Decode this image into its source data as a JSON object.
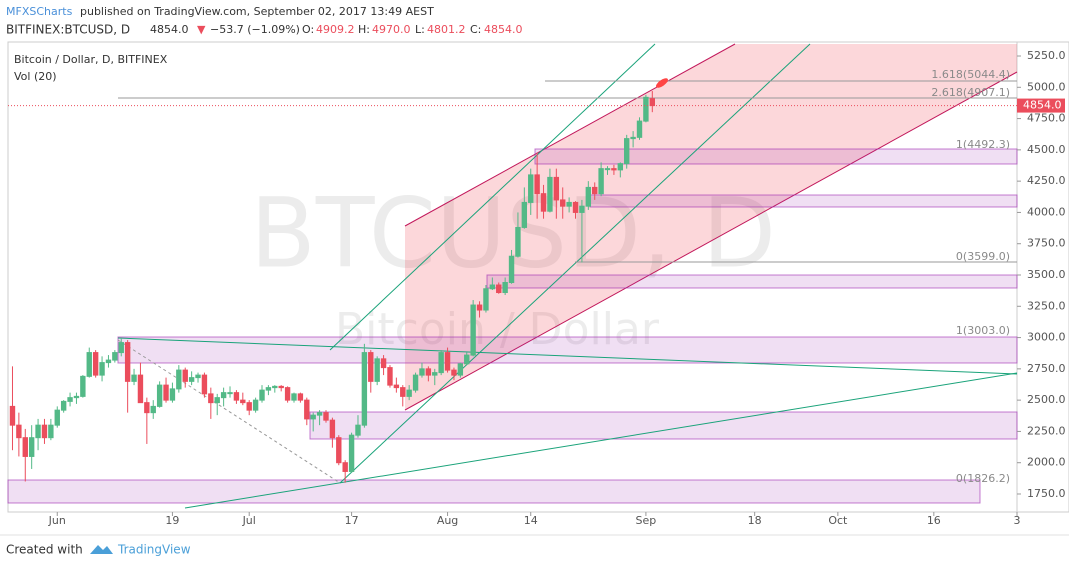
{
  "header": {
    "author": "MFXSCharts",
    "published": "published on TradingView.com, September 02, 2017 13:49 AEST",
    "symbol": "BITFINEX:BTCUSD, D",
    "last": "4854.0",
    "arrow": "▼",
    "change": "−53.7 (−1.09%)",
    "o_label": "O:",
    "o": "4909.2",
    "h_label": "H:",
    "h": "4970.0",
    "l_label": "L:",
    "l": "4801.2",
    "c_label": "C:",
    "c": "4854.0"
  },
  "chart_data": {
    "type": "candlestick",
    "title": "Bitcoin / Dollar, D, BITFINEX",
    "indicator": "Vol (20)",
    "watermark": "BTCUSD, D",
    "watermark_sub": "Bitcoin / Dollar",
    "up_color": "#53b987",
    "down_color": "#eb4d5c",
    "x": [
      -7,
      -6,
      -5,
      -4,
      -3,
      -2,
      -1,
      0,
      1,
      2,
      3,
      4,
      5,
      6,
      7,
      8,
      9,
      10,
      11,
      12,
      13,
      14,
      15,
      16,
      17,
      18,
      19,
      20,
      21,
      22,
      23,
      24,
      25,
      26,
      27,
      28,
      29,
      30,
      31,
      32,
      33,
      34,
      35,
      36,
      37,
      38,
      39,
      40,
      41,
      42,
      43,
      44,
      45,
      46,
      47,
      48,
      49,
      50,
      51,
      52,
      53,
      54,
      55,
      56,
      57,
      58,
      59,
      60,
      61,
      62,
      63,
      64,
      65,
      66,
      67,
      68,
      69,
      70,
      71,
      72,
      73,
      74,
      75,
      76,
      77,
      78,
      79,
      80,
      81,
      82,
      83,
      84,
      85,
      86,
      87,
      88,
      89,
      90,
      91,
      92,
      93
    ],
    "candles": [
      [
        2450,
        2770,
        2100,
        2300
      ],
      [
        2300,
        2400,
        2050,
        2200
      ],
      [
        2200,
        2270,
        1850,
        2050
      ],
      [
        2050,
        2300,
        1950,
        2200
      ],
      [
        2200,
        2350,
        2100,
        2300
      ],
      [
        2300,
        2350,
        2150,
        2200
      ],
      [
        2200,
        2350,
        2180,
        2300
      ],
      [
        2300,
        2450,
        2280,
        2420
      ],
      [
        2420,
        2500,
        2400,
        2490
      ],
      [
        2490,
        2560,
        2450,
        2520
      ],
      [
        2520,
        2560,
        2470,
        2530
      ],
      [
        2530,
        2700,
        2520,
        2690
      ],
      [
        2690,
        2920,
        2680,
        2880
      ],
      [
        2880,
        2900,
        2680,
        2700
      ],
      [
        2700,
        2850,
        2650,
        2800
      ],
      [
        2800,
        2860,
        2760,
        2820
      ],
      [
        2820,
        2900,
        2800,
        2880
      ],
      [
        2880,
        3000,
        2850,
        2960
      ],
      [
        2960,
        2980,
        2400,
        2650
      ],
      [
        2650,
        2750,
        2620,
        2700
      ],
      [
        2700,
        2800,
        2500,
        2480
      ],
      [
        2480,
        2520,
        2150,
        2400
      ],
      [
        2400,
        2500,
        2350,
        2450
      ],
      [
        2450,
        2650,
        2440,
        2620
      ],
      [
        2620,
        2680,
        2480,
        2500
      ],
      [
        2500,
        2640,
        2480,
        2590
      ],
      [
        2590,
        2780,
        2560,
        2740
      ],
      [
        2740,
        2760,
        2600,
        2650
      ],
      [
        2650,
        2730,
        2620,
        2680
      ],
      [
        2680,
        2720,
        2640,
        2700
      ],
      [
        2700,
        2720,
        2520,
        2550
      ],
      [
        2550,
        2600,
        2350,
        2480
      ],
      [
        2480,
        2550,
        2380,
        2520
      ],
      [
        2520,
        2600,
        2450,
        2560
      ],
      [
        2560,
        2610,
        2520,
        2560
      ],
      [
        2560,
        2580,
        2470,
        2500
      ],
      [
        2500,
        2560,
        2460,
        2480
      ],
      [
        2480,
        2500,
        2380,
        2420
      ],
      [
        2420,
        2520,
        2400,
        2500
      ],
      [
        2500,
        2620,
        2480,
        2580
      ],
      [
        2580,
        2620,
        2540,
        2600
      ],
      [
        2600,
        2620,
        2560,
        2610
      ],
      [
        2610,
        2620,
        2570,
        2600
      ],
      [
        2600,
        2610,
        2480,
        2500
      ],
      [
        2500,
        2560,
        2480,
        2550
      ],
      [
        2550,
        2560,
        2480,
        2500
      ],
      [
        2500,
        2520,
        2300,
        2350
      ],
      [
        2350,
        2400,
        2250,
        2380
      ],
      [
        2380,
        2420,
        2300,
        2400
      ],
      [
        2400,
        2420,
        2320,
        2340
      ],
      [
        2340,
        2360,
        2120,
        2200
      ],
      [
        2200,
        2220,
        1980,
        2000
      ],
      [
        2000,
        2020,
        1840,
        1930
      ],
      [
        1930,
        2240,
        1920,
        2220
      ],
      [
        2220,
        2380,
        2200,
        2300
      ],
      [
        2300,
        2950,
        2280,
        2880
      ],
      [
        2880,
        2900,
        2560,
        2650
      ],
      [
        2650,
        2850,
        2620,
        2830
      ],
      [
        2830,
        2860,
        2700,
        2760
      ],
      [
        2760,
        2780,
        2600,
        2620
      ],
      [
        2620,
        2680,
        2560,
        2600
      ],
      [
        2600,
        2620,
        2450,
        2530
      ],
      [
        2530,
        2620,
        2500,
        2580
      ],
      [
        2580,
        2720,
        2560,
        2700
      ],
      [
        2700,
        2800,
        2680,
        2750
      ],
      [
        2750,
        2770,
        2650,
        2700
      ],
      [
        2700,
        2750,
        2620,
        2720
      ],
      [
        2720,
        2900,
        2700,
        2880
      ],
      [
        2880,
        2920,
        2720,
        2740
      ],
      [
        2740,
        2760,
        2660,
        2700
      ],
      [
        2700,
        2800,
        2680,
        2790
      ],
      [
        2790,
        2880,
        2780,
        2860
      ],
      [
        2860,
        3300,
        2850,
        3260
      ],
      [
        3260,
        3290,
        3160,
        3220
      ],
      [
        3220,
        3420,
        3200,
        3390
      ],
      [
        3390,
        3480,
        3380,
        3420
      ],
      [
        3420,
        3440,
        3350,
        3360
      ],
      [
        3360,
        3480,
        3340,
        3440
      ],
      [
        3440,
        3700,
        3430,
        3650
      ],
      [
        3650,
        4000,
        3640,
        3880
      ],
      [
        3880,
        4200,
        3870,
        4080
      ],
      [
        4080,
        4350,
        3980,
        4300
      ],
      [
        4300,
        4480,
        3950,
        4150
      ],
      [
        4150,
        4220,
        3950,
        4010
      ],
      [
        4010,
        4350,
        4000,
        4280
      ],
      [
        4280,
        4350,
        3950,
        4100
      ],
      [
        4100,
        4200,
        3950,
        4050
      ],
      [
        4050,
        4120,
        4000,
        4080
      ],
      [
        4080,
        4090,
        3950,
        4000
      ],
      [
        4000,
        4100,
        3600,
        4050
      ],
      [
        4050,
        4250,
        4020,
        4200
      ],
      [
        4200,
        4240,
        4100,
        4150
      ],
      [
        4150,
        4400,
        4130,
        4350
      ],
      [
        4350,
        4370,
        4300,
        4350
      ],
      [
        4350,
        4380,
        4300,
        4340
      ],
      [
        4340,
        4400,
        4280,
        4390
      ],
      [
        4390,
        4620,
        4350,
        4590
      ],
      [
        4590,
        4650,
        4520,
        4600
      ],
      [
        4600,
        4760,
        4580,
        4730
      ],
      [
        4730,
        4940,
        4720,
        4920
      ],
      [
        4909.2,
        4970,
        4801.2,
        4854
      ]
    ],
    "xlim": [
      -7.7,
      150
    ],
    "xticks": [
      {
        "value": 0,
        "label": "Jun"
      },
      {
        "value": 18,
        "label": "19"
      },
      {
        "value": 30,
        "label": "Jul"
      },
      {
        "value": 46,
        "label": "17"
      },
      {
        "value": 61,
        "label": "Aug"
      },
      {
        "value": 74,
        "label": "14"
      },
      {
        "value": 92,
        "label": "Sep"
      },
      {
        "value": 109,
        "label": "18"
      },
      {
        "value": 122,
        "label": "Oct"
      },
      {
        "value": 137,
        "label": "16"
      },
      {
        "value": 150,
        "label": "3"
      }
    ],
    "ylim": [
      1638,
      5362
    ],
    "yticks": [
      {
        "value": 1750,
        "label": "1750.0"
      },
      {
        "value": 2000,
        "label": "2000.0"
      },
      {
        "value": 2250,
        "label": "2250.0"
      },
      {
        "value": 2500,
        "label": "2500.0"
      },
      {
        "value": 2750,
        "label": "2750.0"
      },
      {
        "value": 3000,
        "label": "3000.0"
      },
      {
        "value": 3250,
        "label": "3250.0"
      },
      {
        "value": 3500,
        "label": "3500.0"
      },
      {
        "value": 3750,
        "label": "3750.0"
      },
      {
        "value": 4000,
        "label": "4000.0"
      },
      {
        "value": 4250,
        "label": "4250.0"
      },
      {
        "value": 4500,
        "label": "4500.0"
      },
      {
        "value": 4750,
        "label": "4750.0"
      },
      {
        "value": 5000,
        "label": "5000.0"
      },
      {
        "value": 5250,
        "label": "5250.0"
      }
    ],
    "last_price_label": "4854.0",
    "annotations": [
      "1.618(5044.4)",
      "2.618(4907.1)",
      "1(4492.3)",
      "0(3599.0)",
      "1(3003.0)",
      "0(1826.2)"
    ]
  },
  "footer": {
    "created": "Created with",
    "brand": "TradingView"
  }
}
